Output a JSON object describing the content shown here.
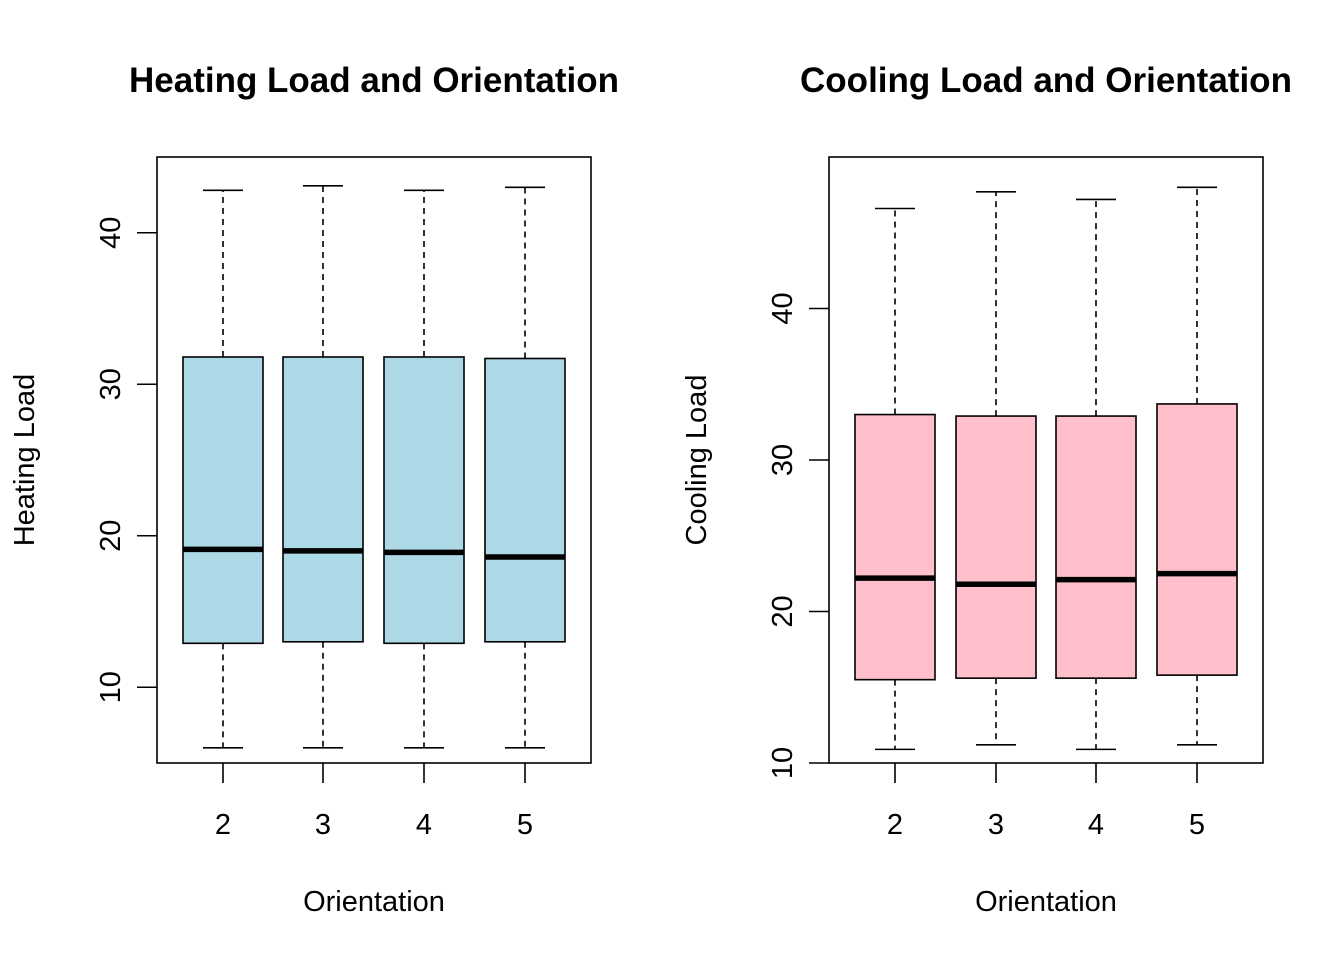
{
  "chart_data": [
    {
      "type": "box",
      "title": "Heating Load and Orientation",
      "xlabel": "Orientation",
      "ylabel": "Heating Load",
      "categories": [
        "2",
        "3",
        "4",
        "5"
      ],
      "ylim": [
        5,
        45
      ],
      "yticks": [
        10,
        20,
        30,
        40
      ],
      "box_color": "#ADD8E6",
      "grid": false,
      "boxes": [
        {
          "category": "2",
          "min": 6.0,
          "q1": 12.9,
          "median": 19.1,
          "q3": 31.8,
          "max": 42.8
        },
        {
          "category": "3",
          "min": 6.0,
          "q1": 13.0,
          "median": 19.0,
          "q3": 31.8,
          "max": 43.1
        },
        {
          "category": "4",
          "min": 6.0,
          "q1": 12.9,
          "median": 18.9,
          "q3": 31.8,
          "max": 42.8
        },
        {
          "category": "5",
          "min": 6.0,
          "q1": 13.0,
          "median": 18.6,
          "q3": 31.7,
          "max": 43.0
        }
      ]
    },
    {
      "type": "box",
      "title": "Cooling Load and Orientation",
      "xlabel": "Orientation",
      "ylabel": "Cooling Load",
      "categories": [
        "2",
        "3",
        "4",
        "5"
      ],
      "ylim": [
        10,
        50
      ],
      "yticks": [
        10,
        20,
        30,
        40
      ],
      "box_color": "#FFC0CB",
      "grid": false,
      "boxes": [
        {
          "category": "2",
          "min": 10.9,
          "q1": 15.5,
          "median": 22.2,
          "q3": 33.0,
          "max": 46.6
        },
        {
          "category": "3",
          "min": 11.2,
          "q1": 15.6,
          "median": 21.8,
          "q3": 32.9,
          "max": 47.7
        },
        {
          "category": "4",
          "min": 10.9,
          "q1": 15.6,
          "median": 22.1,
          "q3": 32.9,
          "max": 47.2
        },
        {
          "category": "5",
          "min": 11.2,
          "q1": 15.8,
          "median": 22.5,
          "q3": 33.7,
          "max": 48.0
        }
      ]
    }
  ]
}
